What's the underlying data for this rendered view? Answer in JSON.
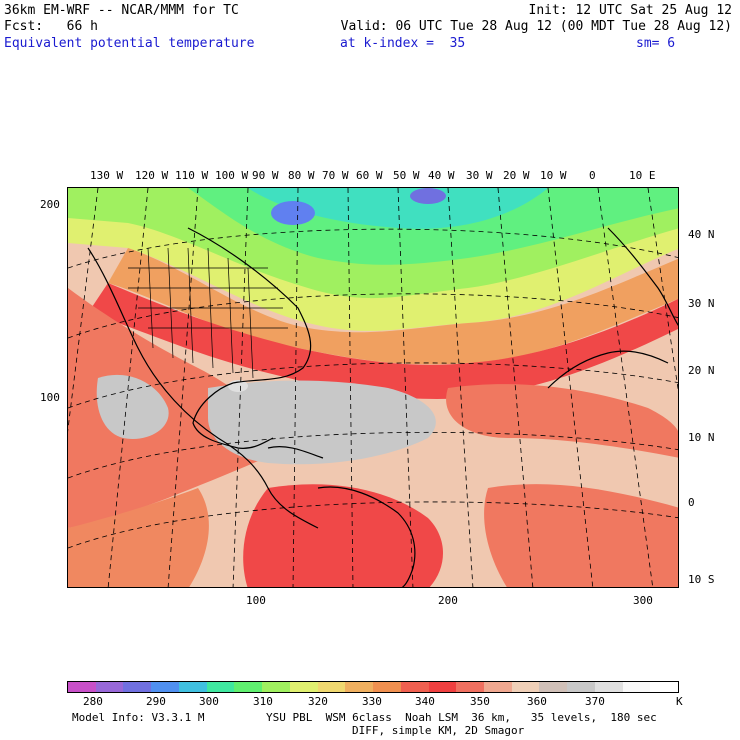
{
  "header": {
    "model_line": "36km EM-WRF -- NCAR/MMM for TC",
    "init_line": "Init: 12 UTC Sat 25 Aug 12",
    "fcst_line": "Fcst:   66 h",
    "valid_line": "Valid: 06 UTC Tue 28 Aug 12 (00 MDT Tue 28 Aug 12)",
    "field_name": "Equivalent potential temperature",
    "level_text": "at k-index =  35",
    "smooth_text": "sm= 6"
  },
  "map": {
    "lon_labels": [
      "130 W",
      "120 W",
      "110 W",
      "100 W",
      "90 W",
      "80 W",
      "70 W",
      "60 W",
      "50 W",
      "40 W",
      "30 W",
      "20 W",
      "10 W",
      "0",
      "10 E"
    ],
    "lat_labels": [
      "40 N",
      "30 N",
      "20 N",
      "10 N",
      "0",
      "10 S"
    ],
    "left_axis_labels": [
      "200",
      "100"
    ],
    "bottom_axis_labels": [
      "100",
      "200",
      "300"
    ],
    "colors": {
      "warm_low": "#f0c8b0",
      "red": "#f04848",
      "orange_red": "#f07860",
      "salmon": "#f0a890",
      "gray": "#c8c8c8",
      "light_gray": "#e0e0e0",
      "yellow": "#f0e060",
      "green_yellow": "#b8f060",
      "green": "#60f080",
      "cyan": "#40e0c0",
      "blue": "#6080f0"
    }
  },
  "colorbar": {
    "colors": [
      "#c850c8",
      "#9868d8",
      "#7070e0",
      "#5090f0",
      "#40c0e0",
      "#40e8a0",
      "#60f070",
      "#a0f060",
      "#e0f070",
      "#f0d870",
      "#f0b060",
      "#f09050",
      "#f06050",
      "#f04040",
      "#f07060",
      "#f0a890",
      "#f0d0b8",
      "#d0c0b8",
      "#c8c8c8",
      "#e0e0e0",
      "#f8f8f8",
      "#ffffff"
    ],
    "labels": [
      "280",
      "290",
      "300",
      "310",
      "320",
      "330",
      "340",
      "350",
      "360",
      "370"
    ],
    "unit": "K"
  },
  "footer": {
    "model_info": "Model Info: V3.3.1 M",
    "physics_line": "YSU PBL  WSM 6class  Noah LSM  36 km,   35 levels,  180 sec",
    "diff_line": "DIFF, simple KM, 2D Smagor"
  }
}
